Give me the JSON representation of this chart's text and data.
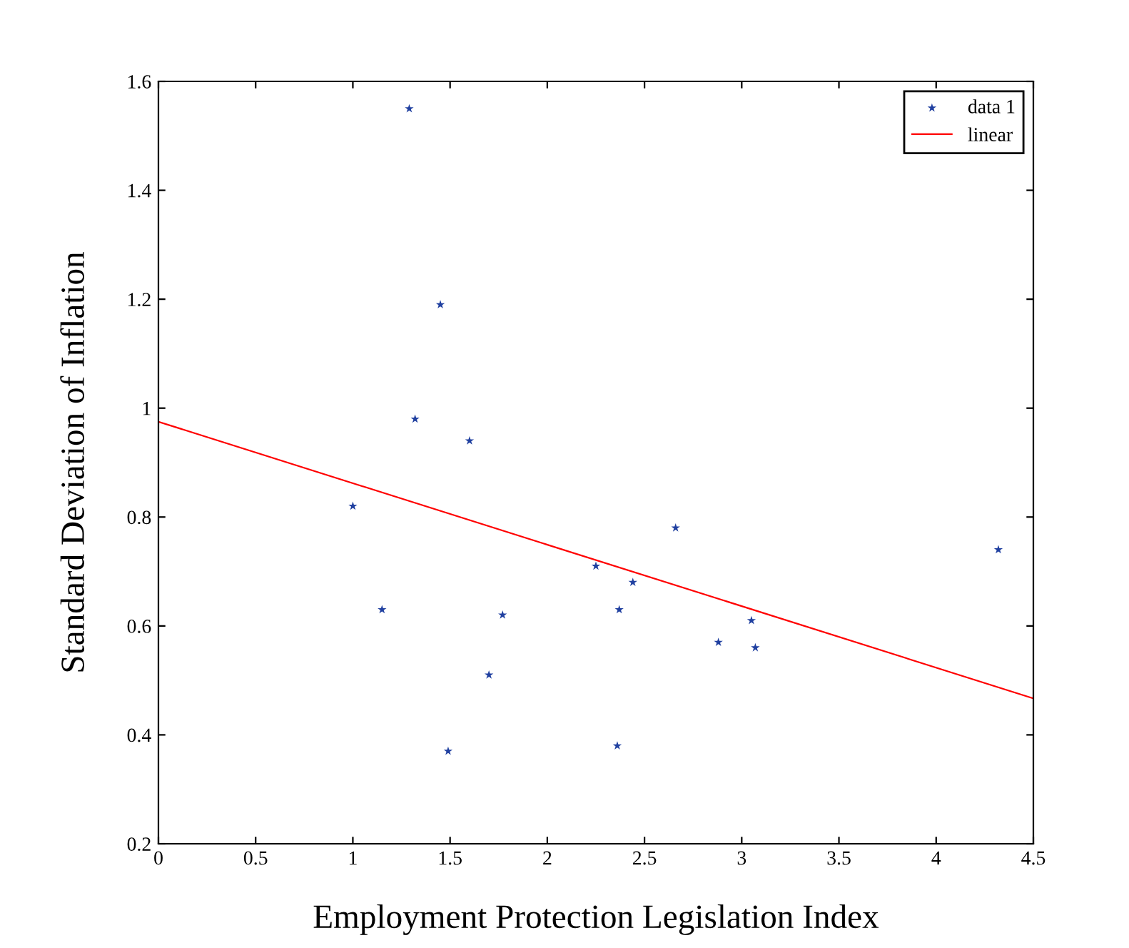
{
  "chart_data": {
    "type": "scatter",
    "xlabel": "Employment Protection Legislation Index",
    "ylabel": "Standard Deviation of Inflation",
    "xlim": [
      0,
      4.5
    ],
    "xticks": [
      0,
      0.5,
      1,
      1.5,
      2,
      2.5,
      3,
      3.5,
      4,
      4.5
    ],
    "ylim": [
      0.2,
      1.6
    ],
    "yticks": [
      0.2,
      0.4,
      0.6,
      0.8,
      1,
      1.2,
      1.4,
      1.6
    ],
    "grid": false,
    "legend": "top right",
    "series": [
      {
        "name": "data 1",
        "color": "#2040a0",
        "marker": "star",
        "x": [
          1.0,
          1.29,
          1.45,
          1.32,
          1.6,
          1.15,
          1.49,
          1.7,
          1.77,
          2.25,
          2.37,
          2.44,
          2.36,
          2.66,
          2.88,
          3.05,
          3.07,
          4.32
        ],
        "values": [
          0.82,
          1.55,
          1.19,
          0.98,
          0.94,
          0.63,
          0.37,
          0.51,
          0.62,
          0.71,
          0.63,
          0.68,
          0.38,
          0.78,
          0.57,
          0.61,
          0.56,
          0.74
        ]
      },
      {
        "name": "linear",
        "type": "line",
        "color": "#ff0000",
        "marker": "none",
        "line_style": "solid",
        "x": [
          0,
          4.5
        ],
        "values": [
          0.975,
          0.467
        ]
      }
    ]
  }
}
